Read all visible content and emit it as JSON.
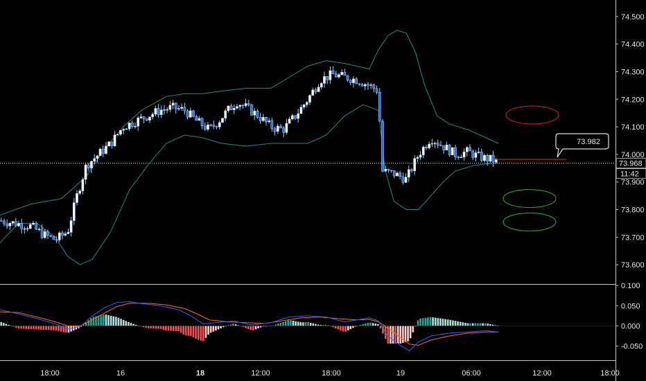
{
  "chart_data": [
    {
      "type": "candlestick",
      "panel": "price",
      "x_tick_labels": [
        "18:00",
        "16",
        "18",
        "12:00",
        "18:00",
        "19",
        "06:00",
        "12:00",
        "18:00"
      ],
      "bold_tick_labels": [
        "18"
      ],
      "y_ticks": [
        73.6,
        73.7,
        73.8,
        73.9,
        74.0,
        74.1,
        74.2,
        74.3,
        74.4,
        74.5
      ],
      "y_tick_labels": [
        "73.600",
        "73.700",
        "73.800",
        "73.900",
        "74.000",
        "74.100",
        "74.200",
        "74.300",
        "74.400",
        "74.500"
      ],
      "ylim": [
        73.53,
        74.56
      ],
      "last_price_label": "73.968",
      "last_price": 73.968,
      "countdown_label": "11:42",
      "callout_label": "73.982",
      "callout_value": 73.982,
      "close_path": [
        [
          0,
          73.76
        ],
        [
          0.025,
          73.75
        ],
        [
          0.05,
          73.74
        ],
        [
          0.07,
          73.71
        ],
        [
          0.09,
          73.69
        ],
        [
          0.11,
          73.72
        ],
        [
          0.125,
          73.85
        ],
        [
          0.14,
          73.96
        ],
        [
          0.16,
          74.0
        ],
        [
          0.18,
          74.04
        ],
        [
          0.2,
          74.1
        ],
        [
          0.22,
          74.12
        ],
        [
          0.24,
          74.14
        ],
        [
          0.26,
          74.16
        ],
        [
          0.28,
          74.17
        ],
        [
          0.3,
          74.16
        ],
        [
          0.32,
          74.12
        ],
        [
          0.34,
          74.09
        ],
        [
          0.355,
          74.12
        ],
        [
          0.37,
          74.16
        ],
        [
          0.385,
          74.19
        ],
        [
          0.4,
          74.17
        ],
        [
          0.42,
          74.14
        ],
        [
          0.44,
          74.1
        ],
        [
          0.46,
          74.09
        ],
        [
          0.48,
          74.14
        ],
        [
          0.5,
          74.2
        ],
        [
          0.52,
          74.27
        ],
        [
          0.54,
          74.29
        ],
        [
          0.56,
          74.28
        ],
        [
          0.58,
          74.27
        ],
        [
          0.6,
          74.25
        ],
        [
          0.615,
          74.23
        ],
        [
          0.62,
          73.94
        ],
        [
          0.64,
          73.93
        ],
        [
          0.66,
          73.91
        ],
        [
          0.68,
          74.0
        ],
        [
          0.7,
          74.06
        ],
        [
          0.72,
          74.03
        ],
        [
          0.74,
          74.0
        ],
        [
          0.76,
          74.01
        ],
        [
          0.78,
          73.99
        ],
        [
          0.8,
          73.98
        ],
        [
          0.81,
          73.97
        ]
      ],
      "bollinger": {
        "upper": [
          [
            0,
            73.78
          ],
          [
            0.05,
            73.82
          ],
          [
            0.1,
            73.84
          ],
          [
            0.14,
            73.92
          ],
          [
            0.17,
            74.02
          ],
          [
            0.2,
            74.1
          ],
          [
            0.23,
            74.16
          ],
          [
            0.27,
            74.21
          ],
          [
            0.3,
            74.22
          ],
          [
            0.33,
            74.22
          ],
          [
            0.36,
            74.23
          ],
          [
            0.4,
            74.24
          ],
          [
            0.44,
            74.24
          ],
          [
            0.47,
            74.28
          ],
          [
            0.5,
            74.32
          ],
          [
            0.53,
            74.34
          ],
          [
            0.56,
            74.33
          ],
          [
            0.6,
            74.31
          ],
          [
            0.615,
            74.38
          ],
          [
            0.63,
            74.43
          ],
          [
            0.645,
            74.45
          ],
          [
            0.66,
            74.44
          ],
          [
            0.675,
            74.37
          ],
          [
            0.69,
            74.25
          ],
          [
            0.71,
            74.14
          ],
          [
            0.73,
            74.11
          ],
          [
            0.76,
            74.09
          ],
          [
            0.79,
            74.06
          ],
          [
            0.81,
            74.04
          ]
        ],
        "lower": [
          [
            0,
            73.68
          ],
          [
            0.03,
            73.75
          ],
          [
            0.06,
            73.75
          ],
          [
            0.09,
            73.7
          ],
          [
            0.11,
            73.63
          ],
          [
            0.13,
            73.6
          ],
          [
            0.15,
            73.62
          ],
          [
            0.18,
            73.72
          ],
          [
            0.21,
            73.87
          ],
          [
            0.24,
            73.96
          ],
          [
            0.27,
            74.04
          ],
          [
            0.3,
            74.07
          ],
          [
            0.33,
            74.06
          ],
          [
            0.36,
            74.04
          ],
          [
            0.4,
            74.03
          ],
          [
            0.44,
            74.04
          ],
          [
            0.47,
            74.04
          ],
          [
            0.5,
            74.04
          ],
          [
            0.53,
            74.07
          ],
          [
            0.56,
            74.14
          ],
          [
            0.59,
            74.18
          ],
          [
            0.615,
            74.16
          ],
          [
            0.625,
            73.95
          ],
          [
            0.64,
            73.83
          ],
          [
            0.66,
            73.8
          ],
          [
            0.68,
            73.8
          ],
          [
            0.7,
            73.85
          ],
          [
            0.72,
            73.9
          ],
          [
            0.74,
            73.94
          ],
          [
            0.77,
            73.96
          ],
          [
            0.81,
            73.97
          ]
        ]
      },
      "annotations": [
        {
          "shape": "ellipse",
          "color": "#e02020",
          "center_y": 74.143
        },
        {
          "shape": "ellipse",
          "color": "#21b821",
          "center_y": 73.84
        },
        {
          "shape": "ellipse",
          "color": "#21b821",
          "center_y": 73.755
        }
      ]
    },
    {
      "type": "macd",
      "panel": "indicator",
      "y_ticks": [
        0.1,
        0.05,
        0.0,
        -0.05
      ],
      "y_tick_labels": [
        "0.100",
        "0.050",
        "0.000",
        "-0.050"
      ],
      "ylim": [
        -0.085,
        0.102
      ],
      "macd_line": [
        [
          0,
          0.04
        ],
        [
          0.03,
          0.03
        ],
        [
          0.06,
          0.018
        ],
        [
          0.09,
          0.005
        ],
        [
          0.11,
          -0.008
        ],
        [
          0.13,
          -0.002
        ],
        [
          0.15,
          0.025
        ],
        [
          0.17,
          0.045
        ],
        [
          0.19,
          0.058
        ],
        [
          0.21,
          0.06
        ],
        [
          0.23,
          0.055
        ],
        [
          0.26,
          0.05
        ],
        [
          0.29,
          0.04
        ],
        [
          0.31,
          0.025
        ],
        [
          0.33,
          0.005
        ],
        [
          0.35,
          0.008
        ],
        [
          0.38,
          0.012
        ],
        [
          0.41,
          0.002
        ],
        [
          0.44,
          0.008
        ],
        [
          0.47,
          0.022
        ],
        [
          0.5,
          0.025
        ],
        [
          0.53,
          0.022
        ],
        [
          0.56,
          0.01
        ],
        [
          0.58,
          0.015
        ],
        [
          0.6,
          0.02
        ],
        [
          0.615,
          0.012
        ],
        [
          0.63,
          -0.025
        ],
        [
          0.65,
          -0.048
        ],
        [
          0.665,
          -0.062
        ],
        [
          0.68,
          -0.04
        ],
        [
          0.7,
          -0.025
        ],
        [
          0.73,
          -0.018
        ],
        [
          0.76,
          -0.015
        ],
        [
          0.79,
          -0.012
        ],
        [
          0.81,
          -0.015
        ]
      ],
      "signal_line": [
        [
          0,
          0.035
        ],
        [
          0.03,
          0.033
        ],
        [
          0.06,
          0.022
        ],
        [
          0.09,
          0.01
        ],
        [
          0.11,
          0.0
        ],
        [
          0.13,
          0.0
        ],
        [
          0.15,
          0.015
        ],
        [
          0.17,
          0.032
        ],
        [
          0.19,
          0.048
        ],
        [
          0.21,
          0.056
        ],
        [
          0.24,
          0.056
        ],
        [
          0.27,
          0.052
        ],
        [
          0.3,
          0.043
        ],
        [
          0.32,
          0.03
        ],
        [
          0.34,
          0.015
        ],
        [
          0.37,
          0.01
        ],
        [
          0.4,
          0.008
        ],
        [
          0.43,
          0.006
        ],
        [
          0.46,
          0.013
        ],
        [
          0.49,
          0.02
        ],
        [
          0.52,
          0.022
        ],
        [
          0.55,
          0.018
        ],
        [
          0.58,
          0.015
        ],
        [
          0.6,
          0.016
        ],
        [
          0.615,
          0.01
        ],
        [
          0.63,
          -0.005
        ],
        [
          0.65,
          -0.028
        ],
        [
          0.665,
          -0.045
        ],
        [
          0.68,
          -0.048
        ],
        [
          0.7,
          -0.035
        ],
        [
          0.73,
          -0.025
        ],
        [
          0.76,
          -0.018
        ],
        [
          0.79,
          -0.015
        ],
        [
          0.81,
          -0.015
        ]
      ],
      "hist_positive_color": "#26a69a",
      "hist_negative_color": "#ef5350",
      "macd_color": "#2962ff",
      "signal_color": "#ff6d00"
    }
  ]
}
